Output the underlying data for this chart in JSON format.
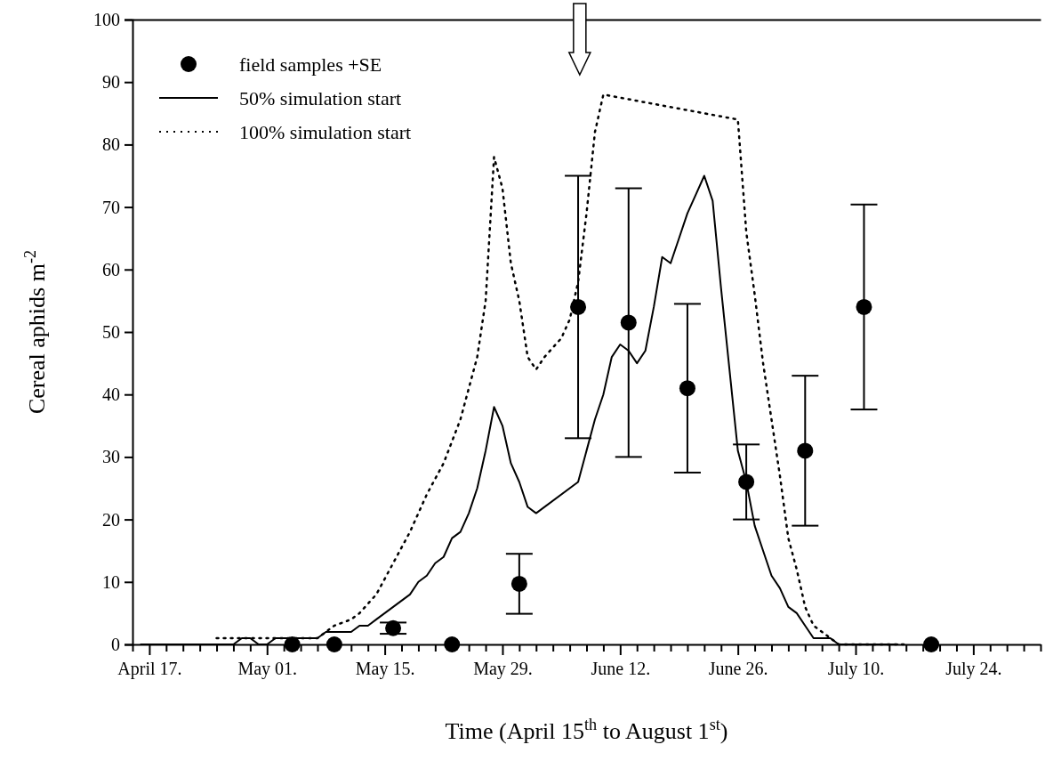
{
  "chart_data": {
    "type": "line",
    "xlabel": "Time (April 15$^{th}$ to August 1$^{st}$)",
    "ylabel": "Cereal aphids m$^{-2}$",
    "xlim": [
      "--04-15",
      "--08-01"
    ],
    "xticks": [
      {
        "value": "--04-15",
        "label": null
      },
      {
        "value": "--04-17",
        "label": "April 17."
      },
      {
        "value": "--04-19",
        "label": null
      },
      {
        "value": "--04-21",
        "label": null
      },
      {
        "value": "--04-23",
        "label": null
      },
      {
        "value": "--04-25",
        "label": null
      },
      {
        "value": "--04-27",
        "label": null
      },
      {
        "value": "--04-29",
        "label": null
      },
      {
        "value": "--05-01",
        "label": "May 01."
      },
      {
        "value": "--05-03",
        "label": null
      },
      {
        "value": "--05-05",
        "label": null
      },
      {
        "value": "--05-07",
        "label": null
      },
      {
        "value": "--05-09",
        "label": null
      },
      {
        "value": "--05-11",
        "label": null
      },
      {
        "value": "--05-13",
        "label": null
      },
      {
        "value": "--05-15",
        "label": "May 15."
      },
      {
        "value": "--05-17",
        "label": null
      },
      {
        "value": "--05-19",
        "label": null
      },
      {
        "value": "--05-21",
        "label": null
      },
      {
        "value": "--05-23",
        "label": null
      },
      {
        "value": "--05-25",
        "label": null
      },
      {
        "value": "--05-27",
        "label": null
      },
      {
        "value": "--05-29",
        "label": "May 29."
      },
      {
        "value": "--05-31",
        "label": null
      },
      {
        "value": "--06-02",
        "label": null
      },
      {
        "value": "--06-04",
        "label": null
      },
      {
        "value": "--06-06",
        "label": null
      },
      {
        "value": "--06-08",
        "label": null
      },
      {
        "value": "--06-10",
        "label": null
      },
      {
        "value": "--06-12",
        "label": "June 12."
      },
      {
        "value": "--06-14",
        "label": null
      },
      {
        "value": "--06-16",
        "label": null
      },
      {
        "value": "--06-18",
        "label": null
      },
      {
        "value": "--06-20",
        "label": null
      },
      {
        "value": "--06-22",
        "label": null
      },
      {
        "value": "--06-24",
        "label": null
      },
      {
        "value": "--06-26",
        "label": "June 26."
      },
      {
        "value": "--06-28",
        "label": null
      },
      {
        "value": "--06-30",
        "label": null
      },
      {
        "value": "--07-02",
        "label": null
      },
      {
        "value": "--07-04",
        "label": null
      },
      {
        "value": "--07-06",
        "label": null
      },
      {
        "value": "--07-08",
        "label": null
      },
      {
        "value": "--07-10",
        "label": "July 10."
      },
      {
        "value": "--07-12",
        "label": null
      },
      {
        "value": "--07-14",
        "label": null
      },
      {
        "value": "--07-16",
        "label": null
      },
      {
        "value": "--07-18",
        "label": null
      },
      {
        "value": "--07-20",
        "label": null
      },
      {
        "value": "--07-22",
        "label": null
      },
      {
        "value": "--07-24",
        "label": "July 24."
      },
      {
        "value": "--07-26",
        "label": null
      },
      {
        "value": "--07-28",
        "label": null
      },
      {
        "value": "--07-30",
        "label": null
      },
      {
        "value": "--08-01",
        "label": null
      }
    ],
    "ylim": [
      0,
      100
    ],
    "yticks": [
      0,
      10,
      20,
      30,
      40,
      50,
      60,
      70,
      80,
      90,
      100
    ],
    "grid": false,
    "legend": "top left",
    "series": [
      {
        "name": "field samples +SE",
        "type": "scatter",
        "color": "#000000",
        "marker": "circle",
        "x": [
          "--05-04",
          "--05-09",
          "--05-16",
          "--05-23",
          "--05-31",
          "--06-07",
          "--06-13",
          "--06-20",
          "--06-27",
          "--07-04",
          "--07-11",
          "--07-19"
        ],
        "values": [
          0,
          0,
          2.6,
          0,
          9.7,
          54,
          51.5,
          41,
          26,
          31,
          54,
          0
        ],
        "errors": [
          null,
          null,
          0.9,
          null,
          4.8,
          21,
          21.5,
          13.5,
          6,
          12,
          16.4,
          null
        ]
      },
      {
        "name": "50% simulation start",
        "color": "#000000",
        "marker": "none",
        "line_style": "solid",
        "x": [
          "--04-16",
          "--04-27",
          "--04-28",
          "--04-29",
          "--04-30",
          "--05-01",
          "--05-02",
          "--05-07",
          "--05-08",
          "--05-11",
          "--05-12",
          "--05-13",
          "--05-14",
          "--05-16",
          "--05-18",
          "--05-19",
          "--05-20",
          "--05-21",
          "--05-22",
          "--05-23",
          "--05-24",
          "--05-25",
          "--05-26",
          "--05-27",
          "--05-28",
          "--05-29",
          "--05-30",
          "--05-31",
          "--06-01",
          "--06-02",
          "--06-07",
          "--06-08",
          "--06-09",
          "--06-10",
          "--06-11",
          "--06-12",
          "--06-13",
          "--06-14",
          "--06-15",
          "--06-16",
          "--06-17",
          "--06-18",
          "--06-19",
          "--06-20",
          "--06-21",
          "--06-22",
          "--06-23",
          "--06-24",
          "--06-25",
          "--06-26",
          "--06-27",
          "--06-28",
          "--06-29",
          "--06-30",
          "--07-01",
          "--07-02",
          "--07-03",
          "--07-04",
          "--07-05",
          "--07-07",
          "--07-08",
          "--07-15"
        ],
        "values": [
          0,
          0,
          1,
          1,
          0,
          0,
          1,
          1,
          2,
          2,
          3,
          3,
          4,
          6,
          8,
          10,
          11,
          13,
          14,
          17,
          18,
          21,
          25,
          31,
          38,
          35,
          29,
          26,
          22,
          21,
          26,
          31,
          36,
          40,
          46,
          48,
          47,
          45,
          47,
          54,
          62,
          61,
          65,
          69,
          72,
          75,
          71,
          57,
          44,
          31,
          26,
          19,
          15,
          11,
          9,
          6,
          5,
          3,
          1,
          1,
          0,
          0
        ]
      },
      {
        "name": "100% simulation start",
        "color": "#000000",
        "marker": "none",
        "line_style": "dotted",
        "x": [
          "--04-25",
          "--05-07",
          "--05-08",
          "--05-09",
          "--05-11",
          "--05-12",
          "--05-14",
          "--05-16",
          "--05-18",
          "--05-20",
          "--05-22",
          "--05-24",
          "--05-25",
          "--05-26",
          "--05-27",
          "--05-28",
          "--05-29",
          "--05-30",
          "--05-31",
          "--06-01",
          "--06-02",
          "--06-03",
          "--06-05",
          "--06-06",
          "--06-07",
          "--06-08",
          "--06-09",
          "--06-10",
          "--06-26",
          "--06-27",
          "--06-28",
          "--06-29",
          "--06-30",
          "--07-01",
          "--07-02",
          "--07-03",
          "--07-04",
          "--07-05",
          "--07-06",
          "--07-07",
          "--07-08",
          "--07-16"
        ],
        "values": [
          1,
          1,
          2,
          3,
          4,
          5,
          8,
          13,
          18,
          24,
          29,
          36,
          41,
          46,
          55,
          78,
          73,
          61,
          55,
          46,
          44,
          46,
          49,
          52,
          58,
          69,
          82,
          88,
          84,
          66,
          56,
          45,
          36,
          27,
          17,
          12,
          6,
          3,
          2,
          1,
          0,
          0
        ]
      }
    ]
  }
}
